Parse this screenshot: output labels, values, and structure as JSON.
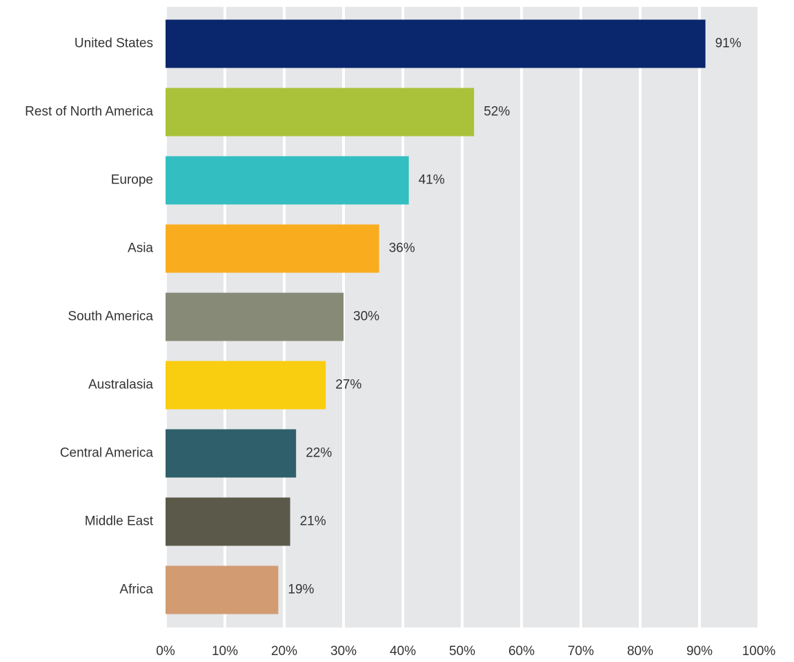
{
  "chart_data": {
    "type": "hbar",
    "categories": [
      "United States",
      "Rest of North America",
      "Europe",
      "Asia",
      "South America",
      "Australasia",
      "Central America",
      "Middle East",
      "Africa"
    ],
    "values": [
      91,
      52,
      41,
      36,
      30,
      27,
      22,
      21,
      19
    ],
    "value_labels": [
      "91%",
      "52%",
      "41%",
      "36%",
      "30%",
      "27%",
      "22%",
      "21%",
      "19%"
    ],
    "colors": [
      "#0a266c",
      "#a9c23a",
      "#33bfc1",
      "#f9ad1e",
      "#888a78",
      "#f9cd10",
      "#2f5f6b",
      "#5b5a4a",
      "#d29b72"
    ],
    "xlim": [
      0,
      100
    ],
    "xticks": [
      {
        "value": 0,
        "label": "0%"
      },
      {
        "value": 10,
        "label": "10%"
      },
      {
        "value": 20,
        "label": "20%"
      },
      {
        "value": 30,
        "label": "30%"
      },
      {
        "value": 40,
        "label": "40%"
      },
      {
        "value": 50,
        "label": "50%"
      },
      {
        "value": 60,
        "label": "60%"
      },
      {
        "value": 70,
        "label": "70%"
      },
      {
        "value": 80,
        "label": "80%"
      },
      {
        "value": 90,
        "label": "90%"
      },
      {
        "value": 100,
        "label": "100%"
      }
    ],
    "grid": true
  }
}
